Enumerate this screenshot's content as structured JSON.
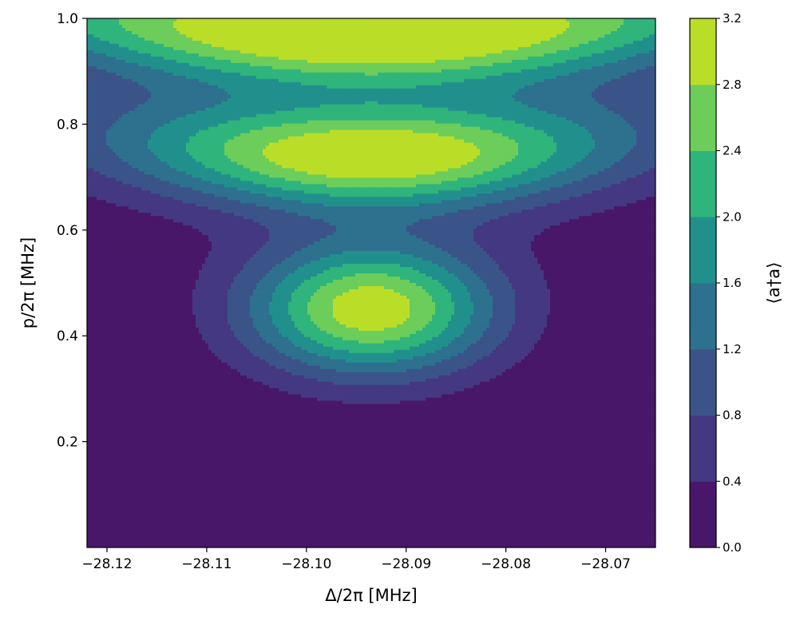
{
  "chart_data": {
    "type": "heatmap",
    "subtype": "filled-contour",
    "xlabel": "Δ/2π [MHz]",
    "ylabel": "p/2π [MHz]",
    "colorbar_label": "⟨a†a⟩",
    "xlim": [
      -28.122,
      -28.065
    ],
    "ylim": [
      0.0,
      1.0
    ],
    "x_ticks": [
      -28.12,
      -28.11,
      -28.1,
      -28.09,
      -28.08,
      -28.07
    ],
    "x_tick_labels": [
      "−28.12",
      "−28.11",
      "−28.10",
      "−28.09",
      "−28.08",
      "−28.07"
    ],
    "y_ticks": [
      0.2,
      0.4,
      0.6,
      0.8,
      1.0
    ],
    "y_tick_labels": [
      "0.2",
      "0.4",
      "0.6",
      "0.8",
      "1.0"
    ],
    "levels": [
      0.0,
      0.4,
      0.8,
      1.2,
      1.6,
      2.0,
      2.4,
      2.8,
      3.2
    ],
    "level_labels": [
      "0.0",
      "0.4",
      "0.8",
      "1.2",
      "1.6",
      "2.0",
      "2.4",
      "2.8",
      "3.2"
    ],
    "colormap": "viridis",
    "band_colors": [
      "#481769",
      "#453882",
      "#3a5489",
      "#2d718e",
      "#21908d",
      "#2fb47c",
      "#6ccd5a",
      "#bade28"
    ],
    "field_model": {
      "center_x": -28.0935,
      "peaks": [
        {
          "y": 0.45,
          "amplitude": 3.1,
          "x_width": 0.0088,
          "y_width": 0.088,
          "note": "central lobe"
        },
        {
          "y": 0.74,
          "amplitude": 3.05,
          "x_width": 0.0175,
          "y_width": 0.07,
          "note": "middle arc"
        },
        {
          "y": 0.97,
          "amplitude": 3.1,
          "x_width": 0.027,
          "y_width": 0.07,
          "note": "top arc"
        }
      ],
      "arc_curvature": 40.0
    },
    "grid": false
  }
}
